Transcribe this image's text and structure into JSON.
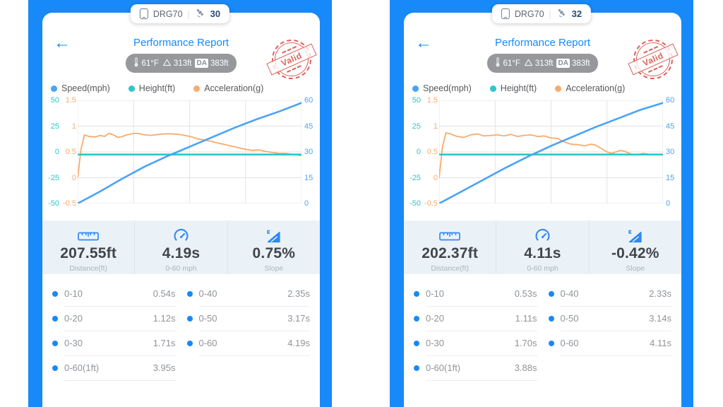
{
  "app": {
    "background_blue": "#1789f8",
    "page_background": "#ffffff",
    "accent_blue": "#2f88f8",
    "stamp_red": "#d9544b"
  },
  "panels": [
    {
      "device_pill": {
        "device_name": "DRG70",
        "separator": "|",
        "satellite_count": "30"
      },
      "header": {
        "back_icon": "←",
        "title": "Performance Report",
        "conditions": {
          "temperature": "61°F",
          "altitude": "313ft",
          "da_label": "DA",
          "density_altitude": "383ft"
        },
        "stamp_text": "Valid"
      },
      "legend": [
        {
          "label": "Speed(mph)",
          "color": "#4aa3f8"
        },
        {
          "label": "Height(ft)",
          "color": "#2bc7cb"
        },
        {
          "label": "Acceleration(g)",
          "color": "#f8ab6e"
        }
      ],
      "chart_data": {
        "type": "line",
        "grid": true,
        "axes": {
          "height_left": {
            "name": "Height(ft)",
            "color": "#2bc7cb",
            "ticks": [
              "50",
              "25",
              "0",
              "-25",
              "-50"
            ],
            "range": [
              -50,
              50
            ]
          },
          "accel_left": {
            "name": "Acceleration(g)",
            "color": "#f8ab6e",
            "ticks": [
              "1.5",
              "1",
              "0.5",
              "0",
              "-0.5"
            ],
            "range": [
              -0.5,
              1.5
            ]
          },
          "speed_right": {
            "name": "Speed(mph)",
            "color": "#4aa3f8",
            "ticks": [
              "60",
              "45",
              "30",
              "15",
              "0"
            ],
            "range": [
              0,
              60
            ]
          }
        },
        "series": [
          {
            "name": "Acceleration(g)",
            "color": "#f8ab6e",
            "width": 1.8,
            "range": [
              -0.5,
              1.5
            ],
            "x": [
              0,
              0.015,
              0.03,
              0.05,
              0.08,
              0.1,
              0.12,
              0.14,
              0.16,
              0.18,
              0.2,
              0.22,
              0.24,
              0.26,
              0.28,
              0.3,
              0.33,
              0.36,
              0.39,
              0.42,
              0.45,
              0.48,
              0.51,
              0.54,
              0.57,
              0.6,
              0.63,
              0.66,
              0.69,
              0.72,
              0.75,
              0.78,
              0.81,
              0.84,
              0.87,
              0.9,
              0.93,
              0.96,
              1.0
            ],
            "values": [
              0.0,
              0.55,
              0.83,
              0.8,
              0.79,
              0.82,
              0.8,
              0.86,
              0.83,
              0.78,
              0.8,
              0.83,
              0.85,
              0.86,
              0.85,
              0.83,
              0.82,
              0.84,
              0.85,
              0.85,
              0.84,
              0.82,
              0.79,
              0.75,
              0.73,
              0.7,
              0.67,
              0.64,
              0.61,
              0.58,
              0.55,
              0.53,
              0.54,
              0.51,
              0.49,
              0.47,
              0.47,
              0.45,
              0.43
            ]
          },
          {
            "name": "Height(ft)",
            "color": "#2bc7cb",
            "width": 2.6,
            "range": [
              -50,
              50
            ],
            "x": [
              0,
              1
            ],
            "values": [
              -2.5,
              -2.5
            ]
          },
          {
            "name": "Speed(mph)",
            "color": "#4aa3f8",
            "width": 2.6,
            "range": [
              0,
              60
            ],
            "x": [
              0,
              0.1,
              0.2,
              0.3,
              0.4,
              0.5,
              0.6,
              0.7,
              0.8,
              0.9,
              1.0
            ],
            "values": [
              0,
              7,
              14.5,
              21.5,
              27.5,
              33,
              38.5,
              44,
              49,
              53.5,
              58.5
            ]
          }
        ]
      },
      "stats": [
        {
          "icon": "ruler-icon",
          "value": "207.55ft",
          "label": "Distance(ft)"
        },
        {
          "icon": "speedometer-icon",
          "value": "4.19s",
          "label": "0-60 mph"
        },
        {
          "icon": "slope-icon",
          "value": "0.75%",
          "label": "Slope"
        }
      ],
      "splits": {
        "col1": [
          {
            "label": "0-10",
            "value": "0.54s"
          },
          {
            "label": "0-20",
            "value": "1.12s"
          },
          {
            "label": "0-30",
            "value": "1.71s"
          },
          {
            "label": "0-60(1ft)",
            "value": "3.95s"
          }
        ],
        "col2": [
          {
            "label": "0-40",
            "value": "2.35s"
          },
          {
            "label": "0-50",
            "value": "3.17s"
          },
          {
            "label": "0-60",
            "value": "4.19s"
          }
        ]
      }
    },
    {
      "device_pill": {
        "device_name": "DRG70",
        "separator": "|",
        "satellite_count": "32"
      },
      "header": {
        "back_icon": "←",
        "title": "Performance Report",
        "conditions": {
          "temperature": "61°F",
          "altitude": "313ft",
          "da_label": "DA",
          "density_altitude": "383ft"
        },
        "stamp_text": "Valid"
      },
      "legend": [
        {
          "label": "Speed(mph)",
          "color": "#4aa3f8"
        },
        {
          "label": "Height(ft)",
          "color": "#2bc7cb"
        },
        {
          "label": "Acceleration(g)",
          "color": "#f8ab6e"
        }
      ],
      "chart_data": {
        "type": "line",
        "grid": true,
        "axes": {
          "height_left": {
            "name": "Height(ft)",
            "color": "#2bc7cb",
            "ticks": [
              "50",
              "25",
              "0",
              "-25",
              "-50"
            ],
            "range": [
              -50,
              50
            ]
          },
          "accel_left": {
            "name": "Acceleration(g)",
            "color": "#f8ab6e",
            "ticks": [
              "1.5",
              "1",
              "0.5",
              "0",
              "-0.5"
            ],
            "range": [
              -0.5,
              1.5
            ]
          },
          "speed_right": {
            "name": "Speed(mph)",
            "color": "#4aa3f8",
            "ticks": [
              "60",
              "45",
              "30",
              "15",
              "0"
            ],
            "range": [
              0,
              60
            ]
          }
        },
        "series": [
          {
            "name": "Acceleration(g)",
            "color": "#f8ab6e",
            "width": 1.8,
            "range": [
              -0.5,
              1.5
            ],
            "x": [
              0,
              0.015,
              0.03,
              0.05,
              0.08,
              0.11,
              0.14,
              0.17,
              0.2,
              0.23,
              0.26,
              0.29,
              0.32,
              0.35,
              0.38,
              0.41,
              0.44,
              0.47,
              0.5,
              0.53,
              0.56,
              0.59,
              0.62,
              0.65,
              0.68,
              0.7,
              0.73,
              0.75,
              0.77,
              0.79,
              0.81,
              0.83,
              0.85,
              0.87,
              0.89,
              0.91,
              0.93,
              0.95,
              0.97,
              1.0
            ],
            "values": [
              0.0,
              0.6,
              0.87,
              0.85,
              0.8,
              0.78,
              0.83,
              0.85,
              0.81,
              0.82,
              0.83,
              0.81,
              0.84,
              0.8,
              0.82,
              0.83,
              0.8,
              0.81,
              0.77,
              0.76,
              0.69,
              0.65,
              0.64,
              0.62,
              0.65,
              0.63,
              0.55,
              0.5,
              0.47,
              0.5,
              0.53,
              0.51,
              0.47,
              0.44,
              0.45,
              0.47,
              0.46,
              0.44,
              0.45,
              0.44
            ]
          },
          {
            "name": "Height(ft)",
            "color": "#2bc7cb",
            "width": 2.6,
            "range": [
              -50,
              50
            ],
            "x": [
              0,
              1
            ],
            "values": [
              -2.5,
              -2.5
            ]
          },
          {
            "name": "Speed(mph)",
            "color": "#4aa3f8",
            "width": 2.6,
            "range": [
              0,
              60
            ],
            "x": [
              0,
              0.1,
              0.2,
              0.3,
              0.4,
              0.5,
              0.6,
              0.7,
              0.8,
              0.9,
              1.0
            ],
            "values": [
              0,
              7,
              14,
              21,
              27.5,
              33.5,
              39,
              44.5,
              49.5,
              54.5,
              58.5
            ]
          }
        ]
      },
      "stats": [
        {
          "icon": "ruler-icon",
          "value": "202.37ft",
          "label": "Distance(ft)"
        },
        {
          "icon": "speedometer-icon",
          "value": "4.11s",
          "label": "0-60 mph"
        },
        {
          "icon": "slope-icon",
          "value": "-0.42%",
          "label": "Slope"
        }
      ],
      "splits": {
        "col1": [
          {
            "label": "0-10",
            "value": "0.53s"
          },
          {
            "label": "0-20",
            "value": "1.11s"
          },
          {
            "label": "0-30",
            "value": "1.70s"
          },
          {
            "label": "0-60(1ft)",
            "value": "3.88s"
          }
        ],
        "col2": [
          {
            "label": "0-40",
            "value": "2.33s"
          },
          {
            "label": "0-50",
            "value": "3.14s"
          },
          {
            "label": "0-60",
            "value": "4.11s"
          }
        ]
      }
    }
  ]
}
